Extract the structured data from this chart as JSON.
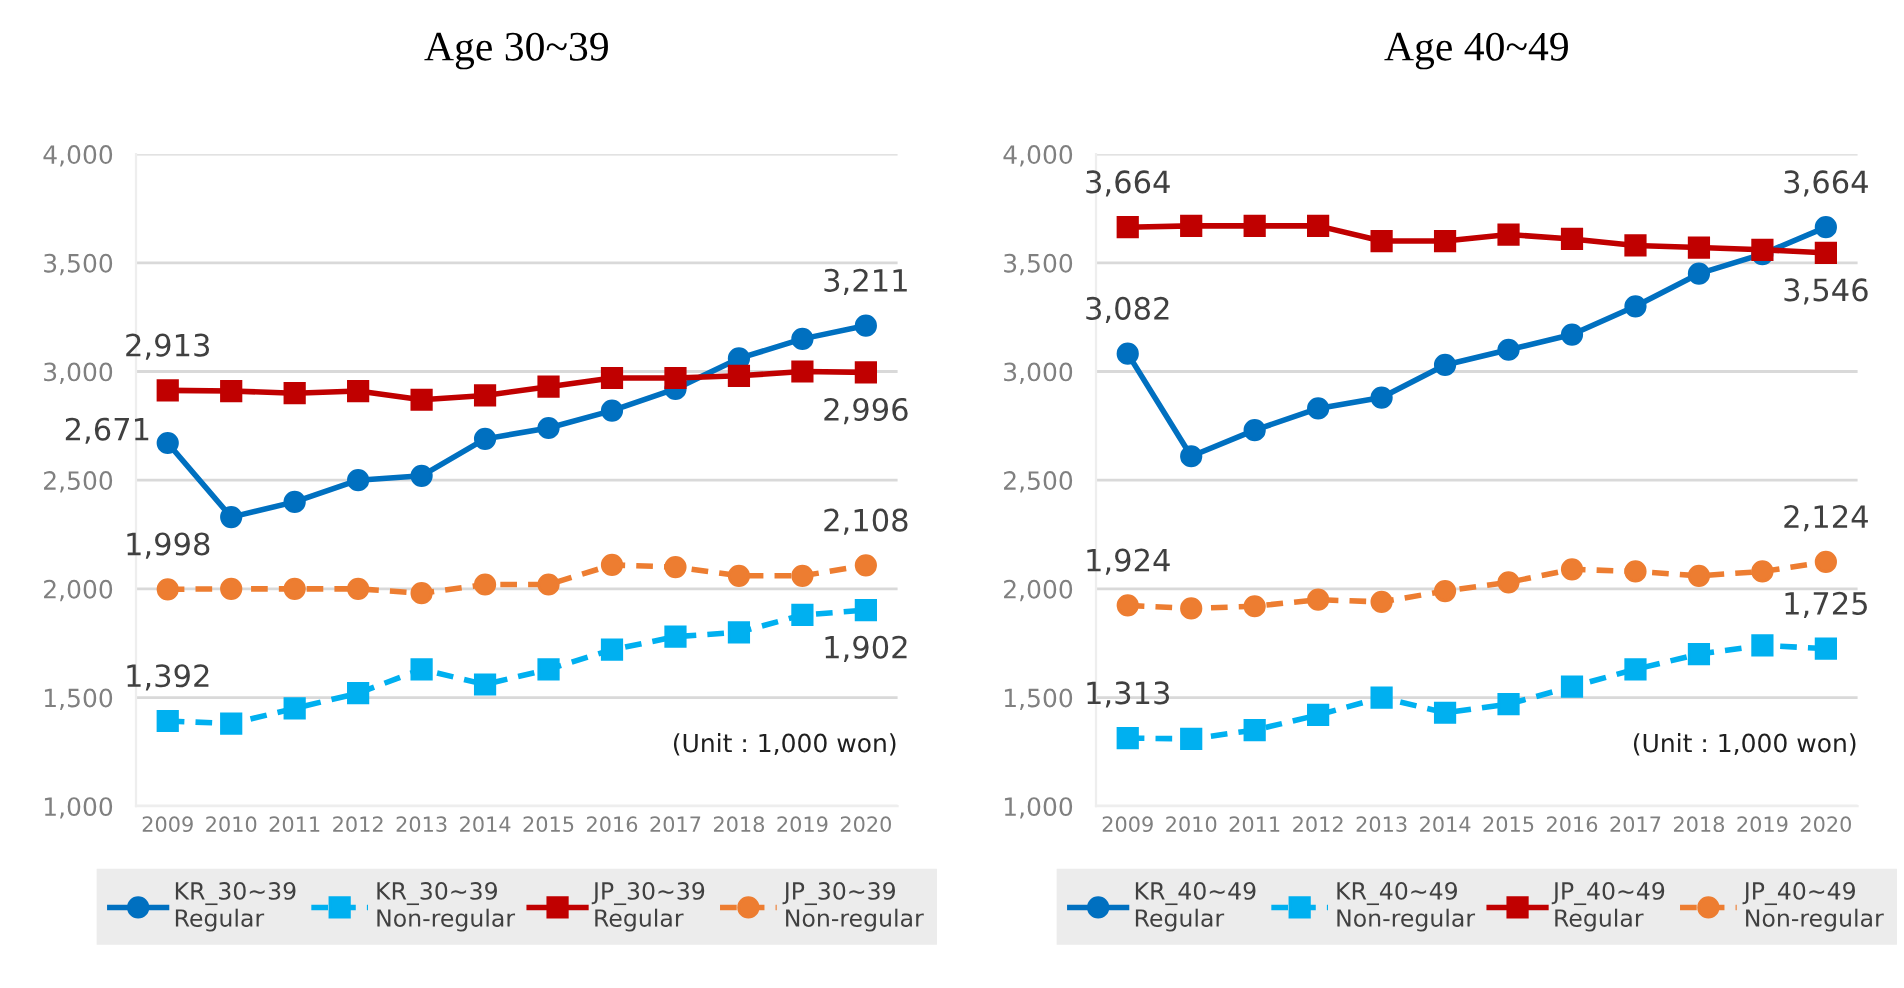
{
  "chart_data": [
    {
      "type": "line",
      "title": "Age 30~39",
      "categories": [
        "2009",
        "2010",
        "2011",
        "2012",
        "2013",
        "2014",
        "2015",
        "2016",
        "2017",
        "2018",
        "2019",
        "2020"
      ],
      "ylim": [
        1000,
        4000
      ],
      "yticks": [
        {
          "value": 1000,
          "label": "1,000"
        },
        {
          "value": 1500,
          "label": "1,500"
        },
        {
          "value": 2000,
          "label": "2,000"
        },
        {
          "value": 2500,
          "label": "2,500"
        },
        {
          "value": 3000,
          "label": "3,000"
        },
        {
          "value": 3500,
          "label": "3,500"
        },
        {
          "value": 4000,
          "label": "4,000"
        }
      ],
      "grid": "y",
      "legend": "bottom",
      "annotations": [
        "(Unit : 1,000 won)"
      ],
      "series": [
        {
          "name": "KR_30~39\nRegular",
          "color": "#0070c0",
          "marker": "circle",
          "line_style": "solid",
          "values": [
            2671,
            2330,
            2400,
            2500,
            2520,
            2690,
            2740,
            2820,
            2920,
            3060,
            3150,
            3211
          ],
          "value_labels": [
            "2,671",
            null,
            null,
            null,
            null,
            null,
            null,
            null,
            null,
            null,
            null,
            "3,211"
          ]
        },
        {
          "name": "KR_30~39\nNon-regular",
          "color": "#00b0f0",
          "marker": "square",
          "line_style": "dashed",
          "values": [
            1392,
            1380,
            1450,
            1520,
            1630,
            1560,
            1630,
            1720,
            1780,
            1800,
            1880,
            1902
          ],
          "value_labels": [
            "1,392",
            null,
            null,
            null,
            null,
            null,
            null,
            null,
            null,
            null,
            null,
            "1,902"
          ]
        },
        {
          "name": "JP_30~39\nRegular",
          "color": "#c00000",
          "marker": "square",
          "line_style": "solid",
          "values": [
            2913,
            2910,
            2900,
            2910,
            2870,
            2890,
            2930,
            2970,
            2970,
            2980,
            3000,
            2996
          ],
          "value_labels": [
            "2,913",
            null,
            null,
            null,
            null,
            null,
            null,
            null,
            null,
            null,
            null,
            "2,996"
          ]
        },
        {
          "name": "JP_30~39\nNon-regular",
          "color": "#ed7d31",
          "marker": "circle",
          "line_style": "dashed",
          "values": [
            1998,
            2000,
            2000,
            2000,
            1980,
            2020,
            2020,
            2110,
            2100,
            2060,
            2060,
            2108
          ],
          "value_labels": [
            "1,998",
            null,
            null,
            null,
            null,
            null,
            null,
            null,
            null,
            null,
            null,
            "2,108"
          ]
        }
      ]
    },
    {
      "type": "line",
      "title": "Age 40~49",
      "categories": [
        "2009",
        "2010",
        "2011",
        "2012",
        "2013",
        "2014",
        "2015",
        "2016",
        "2017",
        "2018",
        "2019",
        "2020"
      ],
      "ylim": [
        1000,
        4000
      ],
      "yticks": [
        {
          "value": 1000,
          "label": "1,000"
        },
        {
          "value": 1500,
          "label": "1,500"
        },
        {
          "value": 2000,
          "label": "2,000"
        },
        {
          "value": 2500,
          "label": "2,500"
        },
        {
          "value": 3000,
          "label": "3,000"
        },
        {
          "value": 3500,
          "label": "3,500"
        },
        {
          "value": 4000,
          "label": "4,000"
        }
      ],
      "grid": "y",
      "legend": "bottom",
      "annotations": [
        "(Unit : 1,000 won)"
      ],
      "series": [
        {
          "name": "KR_40~49\nRegular",
          "color": "#0070c0",
          "marker": "circle",
          "line_style": "solid",
          "values": [
            3082,
            2610,
            2730,
            2830,
            2880,
            3030,
            3100,
            3170,
            3300,
            3450,
            3540,
            3664
          ],
          "value_labels": [
            "3,082",
            null,
            null,
            null,
            null,
            null,
            null,
            null,
            null,
            null,
            null,
            "3,664"
          ]
        },
        {
          "name": "KR_40~49\nNon-regular",
          "color": "#00b0f0",
          "marker": "square",
          "line_style": "dashed",
          "values": [
            1313,
            1310,
            1350,
            1420,
            1500,
            1430,
            1470,
            1550,
            1630,
            1700,
            1740,
            1725
          ],
          "value_labels": [
            "1,313",
            null,
            null,
            null,
            null,
            null,
            null,
            null,
            null,
            null,
            null,
            "1,725"
          ]
        },
        {
          "name": "JP_40~49\nRegular",
          "color": "#c00000",
          "marker": "square",
          "line_style": "solid",
          "values": [
            3664,
            3670,
            3670,
            3670,
            3600,
            3600,
            3630,
            3610,
            3580,
            3570,
            3560,
            3546
          ],
          "value_labels": [
            "3,664",
            null,
            null,
            null,
            null,
            null,
            null,
            null,
            null,
            null,
            null,
            "3,546"
          ]
        },
        {
          "name": "JP_40~49\nNon-regular",
          "color": "#ed7d31",
          "marker": "circle",
          "line_style": "dashed",
          "values": [
            1924,
            1910,
            1920,
            1950,
            1940,
            1990,
            2030,
            2090,
            2080,
            2060,
            2080,
            2124
          ],
          "value_labels": [
            "1,924",
            null,
            null,
            null,
            null,
            null,
            null,
            null,
            null,
            null,
            null,
            "2,124"
          ]
        }
      ]
    }
  ]
}
